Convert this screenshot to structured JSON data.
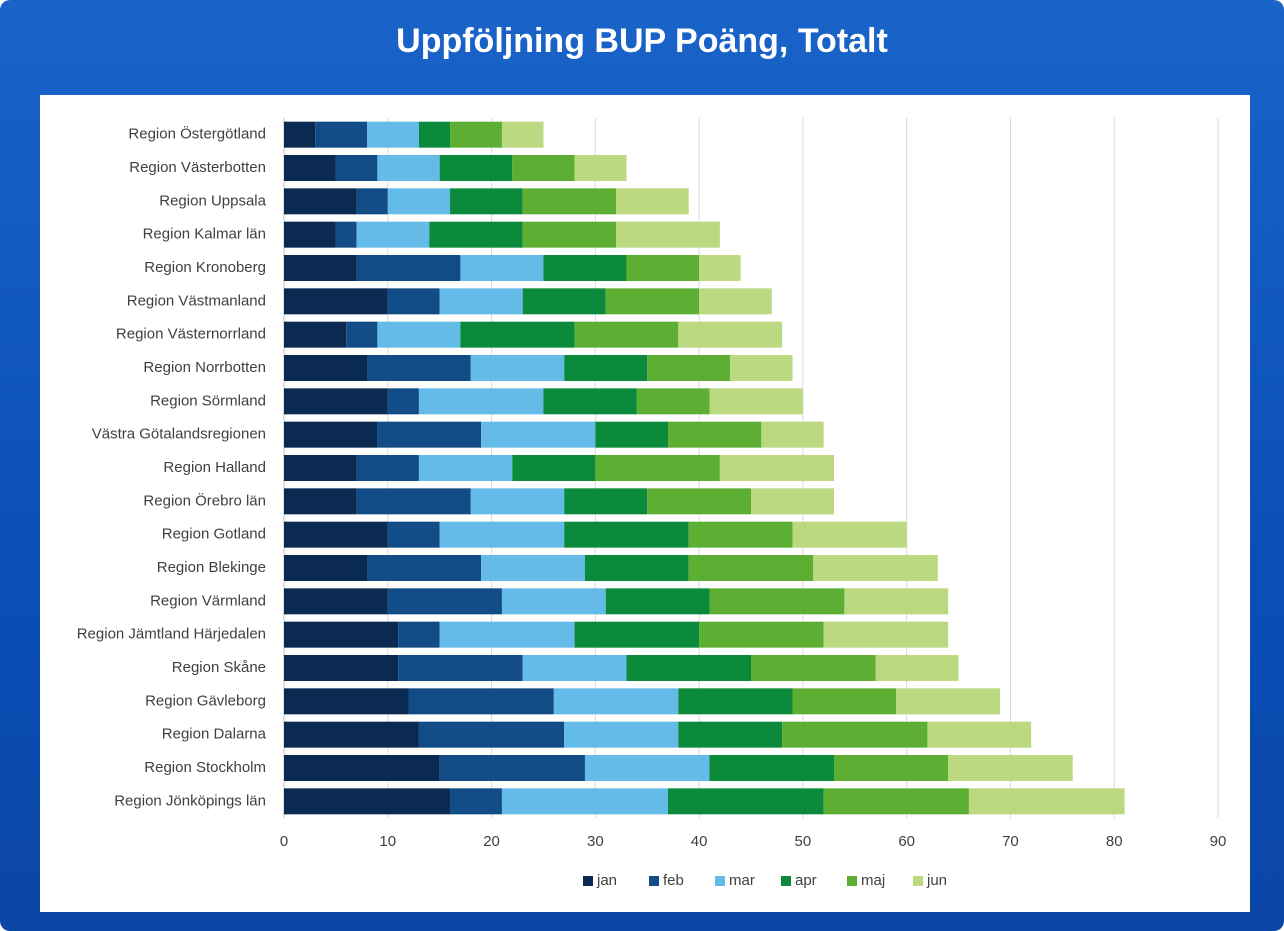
{
  "chart_data": {
    "type": "stacked_barh",
    "title": "Uppföljning BUP Poäng, Totalt",
    "categories": [
      "Region Östergötland",
      "Region Västerbotten",
      "Region Uppsala",
      "Region Kalmar län",
      "Region Kronoberg",
      "Region Västmanland",
      "Region Västernorrland",
      "Region Norrbotten",
      "Region Sörmland",
      "Västra Götalandsregionen",
      "Region Halland",
      "Region Örebro län",
      "Region Gotland",
      "Region Blekinge",
      "Region Värmland",
      "Region Jämtland Härjedalen",
      "Region Skåne",
      "Region Gävleborg",
      "Region Dalarna",
      "Region Stockholm",
      "Region Jönköpings län"
    ],
    "series": [
      {
        "name": "jan",
        "color": "#0b2a52",
        "values": [
          3,
          5,
          7,
          5,
          7,
          10,
          6,
          8,
          10,
          9,
          7,
          7,
          10,
          8,
          10,
          11,
          11,
          12,
          13,
          15,
          16
        ]
      },
      {
        "name": "feb",
        "color": "#114c86",
        "values": [
          5,
          4,
          3,
          2,
          10,
          5,
          3,
          10,
          3,
          10,
          6,
          11,
          5,
          11,
          11,
          4,
          12,
          14,
          14,
          14,
          5
        ]
      },
      {
        "name": "mar",
        "color": "#65bbe8",
        "values": [
          5,
          6,
          6,
          7,
          8,
          8,
          8,
          9,
          12,
          11,
          9,
          9,
          12,
          10,
          10,
          13,
          10,
          12,
          11,
          12,
          16
        ]
      },
      {
        "name": "apr",
        "color": "#0b8a3b",
        "values": [
          3,
          7,
          7,
          9,
          8,
          8,
          11,
          8,
          9,
          7,
          8,
          8,
          12,
          10,
          10,
          12,
          12,
          11,
          10,
          12,
          15
        ]
      },
      {
        "name": "maj",
        "color": "#5caf33",
        "values": [
          5,
          6,
          9,
          9,
          7,
          9,
          10,
          8,
          7,
          9,
          12,
          10,
          10,
          12,
          13,
          12,
          12,
          10,
          14,
          11,
          14
        ]
      },
      {
        "name": "jun",
        "color": "#bad981",
        "values": [
          4,
          5,
          7,
          10,
          4,
          7,
          10,
          6,
          9,
          6,
          11,
          8,
          11,
          12,
          10,
          12,
          8,
          10,
          10,
          12,
          15
        ]
      }
    ],
    "xlim": [
      0,
      90
    ],
    "xticks": [
      0,
      10,
      20,
      30,
      40,
      50,
      60,
      70,
      80,
      90
    ],
    "grid": true,
    "legend": "bottom"
  }
}
